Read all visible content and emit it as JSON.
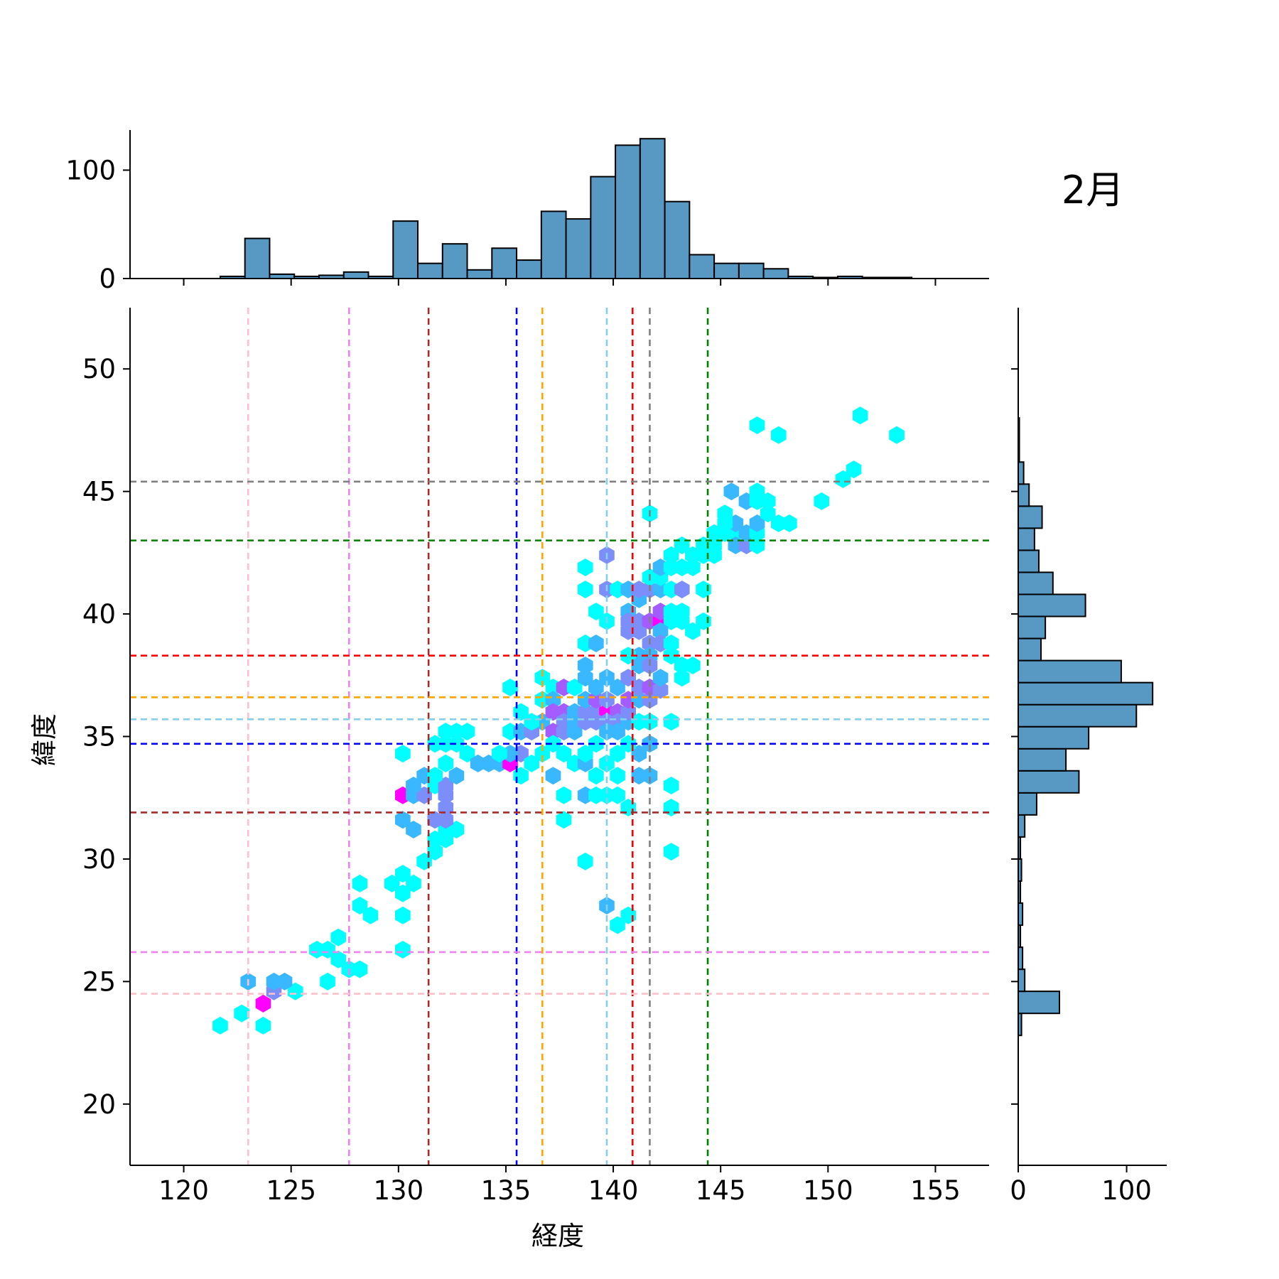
{
  "chart_data": {
    "type": "hexbin",
    "title": "2月",
    "xlabel": "経度",
    "ylabel": "緯度",
    "xlim": [
      117.5,
      157.5
    ],
    "ylim": [
      17.5,
      52.5
    ],
    "xticks": [
      120,
      125,
      130,
      135,
      140,
      145,
      150,
      155
    ],
    "yticks": [
      20,
      25,
      30,
      35,
      40,
      45,
      50
    ],
    "marginal_x": {
      "yticks": [
        0,
        100
      ],
      "bin_edges": [
        121.7,
        122.85,
        124.0,
        125.15,
        126.3,
        127.45,
        128.6,
        129.75,
        130.9,
        132.05,
        133.2,
        134.35,
        135.5,
        136.65,
        137.8,
        138.95,
        140.1,
        141.25,
        142.4,
        143.55,
        144.7,
        145.85,
        147.0,
        148.15,
        149.3,
        150.45,
        151.6,
        152.75,
        153.9
      ],
      "counts": [
        2,
        37,
        4,
        2,
        3,
        6,
        2,
        53,
        14,
        32,
        8,
        28,
        17,
        62,
        55,
        94,
        123,
        129,
        71,
        22,
        14,
        14,
        9,
        2,
        1,
        2,
        1,
        1
      ]
    },
    "marginal_y": {
      "xticks": [
        0,
        100
      ],
      "bin_edges": [
        22.8,
        23.7,
        24.6,
        25.5,
        26.4,
        27.3,
        28.2,
        29.1,
        30.0,
        30.9,
        31.8,
        32.7,
        33.6,
        34.5,
        35.4,
        36.3,
        37.2,
        38.1,
        39.0,
        39.9,
        40.8,
        41.7,
        42.6,
        43.5,
        44.4,
        45.3,
        46.2,
        47.1,
        48.0
      ],
      "counts": [
        3,
        38,
        6,
        4,
        2,
        4,
        2,
        3,
        2,
        6,
        17,
        56,
        44,
        65,
        109,
        124,
        95,
        21,
        25,
        62,
        32,
        19,
        15,
        22,
        10,
        5,
        1,
        1,
        3
      ]
    },
    "vlines": [
      {
        "x": 123.0,
        "color": "#ffc0cb"
      },
      {
        "x": 127.7,
        "color": "#ee82ee"
      },
      {
        "x": 131.4,
        "color": "#a52a2a"
      },
      {
        "x": 135.5,
        "color": "#0000ff"
      },
      {
        "x": 136.7,
        "color": "#ffa500"
      },
      {
        "x": 139.7,
        "color": "#87ceeb"
      },
      {
        "x": 140.9,
        "color": "#ff0000"
      },
      {
        "x": 141.7,
        "color": "#808080"
      },
      {
        "x": 144.4,
        "color": "#008000"
      }
    ],
    "hlines": [
      {
        "y": 24.5,
        "color": "#ffc0cb"
      },
      {
        "y": 26.2,
        "color": "#ee82ee"
      },
      {
        "y": 31.9,
        "color": "#a52a2a"
      },
      {
        "y": 34.7,
        "color": "#0000ff"
      },
      {
        "y": 35.7,
        "color": "#87ceeb"
      },
      {
        "y": 36.6,
        "color": "#ffa500"
      },
      {
        "y": 38.3,
        "color": "#ff0000"
      },
      {
        "y": 43.0,
        "color": "#008000"
      },
      {
        "y": 45.4,
        "color": "#808080"
      }
    ],
    "colormap": [
      "#00ffff",
      "#3ab8ff",
      "#7b8ef9",
      "#a35cff",
      "#ff00ff"
    ],
    "hexbins": [
      [
        121.7,
        23.2,
        0
      ],
      [
        122.7,
        23.7,
        0
      ],
      [
        123.7,
        23.2,
        0
      ],
      [
        123.7,
        24.1,
        4
      ],
      [
        124.2,
        24.6,
        2
      ],
      [
        125.2,
        24.6,
        0
      ],
      [
        123.0,
        25.0,
        1
      ],
      [
        124.2,
        25.0,
        1
      ],
      [
        124.7,
        25.0,
        1
      ],
      [
        126.2,
        26.3,
        0
      ],
      [
        126.7,
        26.3,
        0
      ],
      [
        126.7,
        25.0,
        0
      ],
      [
        127.2,
        25.9,
        0
      ],
      [
        127.7,
        25.5,
        0
      ],
      [
        128.2,
        25.5,
        0
      ],
      [
        127.2,
        26.8,
        0
      ],
      [
        128.2,
        28.1,
        0
      ],
      [
        128.7,
        27.7,
        0
      ],
      [
        130.2,
        27.7,
        0
      ],
      [
        130.2,
        26.3,
        0
      ],
      [
        128.2,
        29.0,
        0
      ],
      [
        129.7,
        29.0,
        0
      ],
      [
        130.2,
        28.6,
        0
      ],
      [
        130.2,
        29.4,
        0
      ],
      [
        130.7,
        29.0,
        0
      ],
      [
        131.2,
        29.9,
        0
      ],
      [
        131.7,
        30.3,
        0
      ],
      [
        131.7,
        30.8,
        0
      ],
      [
        132.2,
        30.8,
        0
      ],
      [
        132.2,
        31.2,
        0
      ],
      [
        132.7,
        31.2,
        0
      ],
      [
        130.2,
        31.6,
        1
      ],
      [
        130.7,
        31.2,
        1
      ],
      [
        131.7,
        31.6,
        2
      ],
      [
        132.2,
        31.6,
        2
      ],
      [
        132.2,
        32.1,
        2
      ],
      [
        130.2,
        32.6,
        4
      ],
      [
        130.7,
        32.6,
        1
      ],
      [
        131.2,
        32.6,
        2
      ],
      [
        130.7,
        33.0,
        1
      ],
      [
        131.2,
        33.4,
        1
      ],
      [
        131.7,
        33.0,
        0
      ],
      [
        132.2,
        33.0,
        2
      ],
      [
        132.7,
        33.4,
        1
      ],
      [
        132.2,
        32.6,
        2
      ],
      [
        130.2,
        34.3,
        0
      ],
      [
        131.7,
        33.4,
        0
      ],
      [
        132.2,
        33.9,
        0
      ],
      [
        131.7,
        34.7,
        0
      ],
      [
        132.2,
        34.7,
        0
      ],
      [
        132.7,
        34.7,
        0
      ],
      [
        133.2,
        34.3,
        0
      ],
      [
        133.7,
        33.9,
        1
      ],
      [
        134.2,
        33.9,
        1
      ],
      [
        134.7,
        33.9,
        1
      ],
      [
        135.2,
        33.9,
        4
      ],
      [
        135.7,
        34.3,
        2
      ],
      [
        135.2,
        34.3,
        1
      ],
      [
        134.7,
        34.3,
        0
      ],
      [
        135.7,
        33.4,
        0
      ],
      [
        136.2,
        33.9,
        0
      ],
      [
        132.2,
        35.2,
        0
      ],
      [
        132.7,
        35.2,
        0
      ],
      [
        133.2,
        35.2,
        0
      ],
      [
        135.2,
        35.2,
        0
      ],
      [
        135.7,
        35.2,
        1
      ],
      [
        136.2,
        35.2,
        2
      ],
      [
        136.7,
        35.6,
        1
      ],
      [
        136.2,
        35.6,
        0
      ],
      [
        135.7,
        36.0,
        0
      ],
      [
        135.2,
        37.0,
        0
      ],
      [
        136.7,
        37.4,
        0
      ],
      [
        137.2,
        37.0,
        0
      ],
      [
        136.7,
        36.5,
        0
      ],
      [
        137.2,
        36.5,
        1
      ],
      [
        137.2,
        36.0,
        3
      ],
      [
        137.7,
        36.0,
        3
      ],
      [
        137.7,
        35.6,
        2
      ],
      [
        137.2,
        35.2,
        3
      ],
      [
        137.7,
        35.2,
        2
      ],
      [
        138.2,
        35.6,
        1
      ],
      [
        138.2,
        35.2,
        1
      ],
      [
        138.7,
        35.6,
        2
      ],
      [
        138.2,
        36.0,
        1
      ],
      [
        138.7,
        36.0,
        2
      ],
      [
        138.7,
        36.5,
        1
      ],
      [
        139.2,
        36.0,
        2
      ],
      [
        139.2,
        36.5,
        3
      ],
      [
        139.7,
        36.0,
        4
      ],
      [
        139.7,
        36.5,
        2
      ],
      [
        140.2,
        36.0,
        3
      ],
      [
        140.2,
        35.6,
        2
      ],
      [
        139.7,
        35.6,
        2
      ],
      [
        139.2,
        35.6,
        2
      ],
      [
        139.7,
        35.2,
        1
      ],
      [
        140.2,
        35.2,
        1
      ],
      [
        140.7,
        35.6,
        1
      ],
      [
        140.7,
        36.0,
        2
      ],
      [
        140.7,
        36.5,
        3
      ],
      [
        141.2,
        36.5,
        1
      ],
      [
        141.2,
        37.0,
        2
      ],
      [
        141.7,
        36.5,
        2
      ],
      [
        141.7,
        37.0,
        3
      ],
      [
        142.2,
        36.9,
        2
      ],
      [
        141.7,
        35.6,
        0
      ],
      [
        142.7,
        35.6,
        0
      ],
      [
        141.2,
        35.6,
        0
      ],
      [
        137.7,
        37.0,
        3
      ],
      [
        138.2,
        37.0,
        0
      ],
      [
        138.7,
        37.4,
        1
      ],
      [
        139.7,
        37.4,
        1
      ],
      [
        140.2,
        37.0,
        1
      ],
      [
        139.2,
        37.0,
        1
      ],
      [
        138.7,
        37.9,
        1
      ],
      [
        138.7,
        38.8,
        0
      ],
      [
        139.2,
        38.8,
        1
      ],
      [
        139.7,
        39.7,
        0
      ],
      [
        139.2,
        40.1,
        0
      ],
      [
        139.7,
        41.0,
        2
      ],
      [
        138.7,
        41.0,
        0
      ],
      [
        138.7,
        41.9,
        0
      ],
      [
        139.7,
        42.4,
        2
      ],
      [
        140.2,
        41.0,
        0
      ],
      [
        140.7,
        41.0,
        1
      ],
      [
        141.2,
        40.6,
        1
      ],
      [
        141.2,
        41.0,
        2
      ],
      [
        140.7,
        40.1,
        1
      ],
      [
        140.7,
        39.7,
        2
      ],
      [
        140.7,
        39.3,
        2
      ],
      [
        141.2,
        39.7,
        2
      ],
      [
        141.2,
        39.3,
        2
      ],
      [
        141.7,
        39.7,
        3
      ],
      [
        142.2,
        39.7,
        4
      ],
      [
        142.2,
        40.1,
        3
      ],
      [
        142.7,
        39.7,
        0
      ],
      [
        142.7,
        40.1,
        0
      ],
      [
        143.2,
        39.7,
        0
      ],
      [
        143.2,
        40.1,
        0
      ],
      [
        143.7,
        39.3,
        0
      ],
      [
        144.2,
        39.7,
        0
      ],
      [
        142.2,
        39.3,
        1
      ],
      [
        141.7,
        38.8,
        2
      ],
      [
        142.2,
        38.8,
        2
      ],
      [
        142.7,
        38.8,
        0
      ],
      [
        142.7,
        38.3,
        0
      ],
      [
        143.2,
        37.9,
        0
      ],
      [
        143.7,
        37.9,
        0
      ],
      [
        143.2,
        37.4,
        0
      ],
      [
        142.7,
        38.3,
        0
      ],
      [
        141.2,
        38.3,
        1
      ],
      [
        141.7,
        38.3,
        1
      ],
      [
        140.7,
        38.3,
        0
      ],
      [
        141.2,
        37.9,
        1
      ],
      [
        141.7,
        37.9,
        2
      ],
      [
        142.2,
        37.4,
        1
      ],
      [
        140.7,
        37.4,
        2
      ],
      [
        141.7,
        41.0,
        2
      ],
      [
        142.2,
        41.0,
        1
      ],
      [
        142.7,
        41.0,
        0
      ],
      [
        143.2,
        41.0,
        2
      ],
      [
        144.2,
        41.0,
        0
      ],
      [
        141.7,
        41.5,
        0
      ],
      [
        142.2,
        41.5,
        0
      ],
      [
        142.2,
        41.9,
        1
      ],
      [
        142.7,
        41.9,
        0
      ],
      [
        143.2,
        41.9,
        0
      ],
      [
        143.7,
        41.9,
        0
      ],
      [
        142.7,
        42.4,
        0
      ],
      [
        143.2,
        42.8,
        0
      ],
      [
        143.7,
        42.4,
        0
      ],
      [
        144.2,
        42.4,
        0
      ],
      [
        144.7,
        42.4,
        0
      ],
      [
        144.2,
        42.8,
        0
      ],
      [
        144.7,
        42.8,
        0
      ],
      [
        145.2,
        43.3,
        0
      ],
      [
        145.7,
        43.3,
        0
      ],
      [
        145.7,
        42.8,
        1
      ],
      [
        146.2,
        42.8,
        2
      ],
      [
        146.7,
        42.8,
        0
      ],
      [
        146.2,
        43.3,
        1
      ],
      [
        146.7,
        43.3,
        0
      ],
      [
        146.7,
        43.7,
        1
      ],
      [
        145.7,
        43.7,
        1
      ],
      [
        144.7,
        43.3,
        0
      ],
      [
        145.2,
        43.7,
        0
      ],
      [
        146.2,
        44.6,
        1
      ],
      [
        146.7,
        44.6,
        0
      ],
      [
        147.2,
        44.6,
        0
      ],
      [
        147.2,
        44.1,
        0
      ],
      [
        147.7,
        43.7,
        0
      ],
      [
        148.2,
        43.7,
        0
      ],
      [
        146.7,
        45.0,
        0
      ],
      [
        145.2,
        44.1,
        0
      ],
      [
        145.5,
        45.0,
        1
      ],
      [
        141.7,
        44.1,
        0
      ],
      [
        149.7,
        44.6,
        0
      ],
      [
        150.7,
        45.5,
        0
      ],
      [
        151.2,
        45.9,
        0
      ],
      [
        146.7,
        47.7,
        0
      ],
      [
        147.7,
        47.3,
        0
      ],
      [
        151.5,
        48.1,
        0
      ],
      [
        153.2,
        47.3,
        0
      ],
      [
        132.2,
        33.9,
        0
      ],
      [
        136.7,
        34.3,
        0
      ],
      [
        137.2,
        34.7,
        0
      ],
      [
        137.7,
        34.3,
        0
      ],
      [
        138.2,
        33.9,
        0
      ],
      [
        138.7,
        33.9,
        1
      ],
      [
        139.2,
        33.4,
        0
      ],
      [
        139.7,
        33.9,
        0
      ],
      [
        140.2,
        33.4,
        0
      ],
      [
        138.7,
        32.6,
        1
      ],
      [
        139.2,
        32.6,
        0
      ],
      [
        139.7,
        32.6,
        0
      ],
      [
        140.2,
        32.6,
        0
      ],
      [
        137.7,
        32.6,
        0
      ],
      [
        141.2,
        33.4,
        1
      ],
      [
        141.7,
        33.4,
        1
      ],
      [
        142.7,
        33.0,
        0
      ],
      [
        142.7,
        32.1,
        0
      ],
      [
        140.7,
        32.1,
        0
      ],
      [
        137.7,
        31.6,
        0
      ],
      [
        138.7,
        29.9,
        0
      ],
      [
        139.7,
        28.1,
        1
      ],
      [
        140.2,
        27.3,
        0
      ],
      [
        140.7,
        27.7,
        0
      ],
      [
        142.7,
        30.3,
        0
      ],
      [
        137.2,
        33.4,
        1
      ],
      [
        141.7,
        34.7,
        1
      ],
      [
        141.2,
        34.3,
        1
      ],
      [
        140.7,
        34.7,
        0
      ],
      [
        139.2,
        34.7,
        0
      ],
      [
        138.7,
        34.3,
        0
      ],
      [
        140.2,
        34.3,
        0
      ]
    ]
  }
}
